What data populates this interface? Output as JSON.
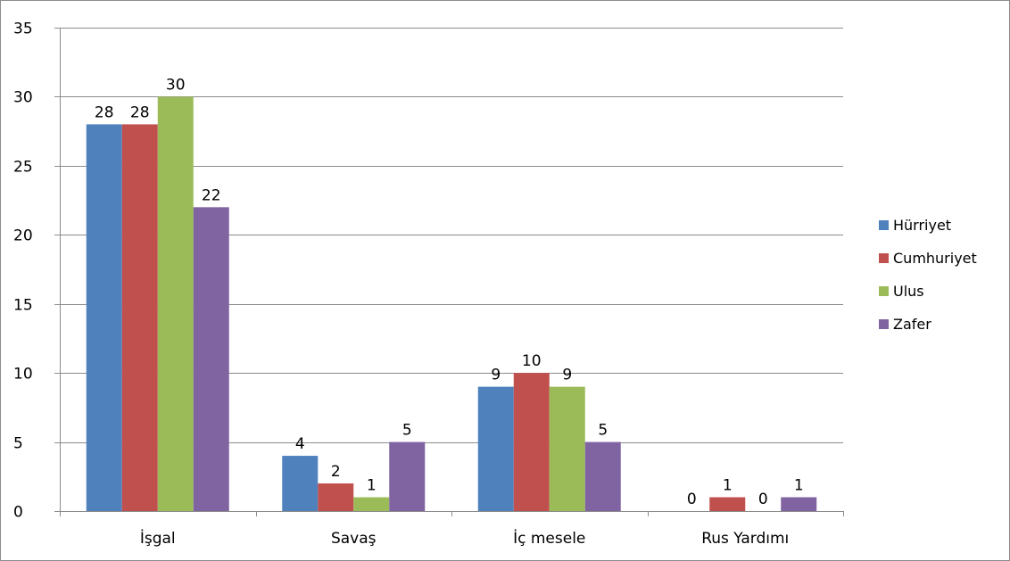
{
  "chart_data": {
    "type": "bar",
    "title": "",
    "xlabel": "",
    "ylabel": "",
    "categories": [
      "İşgal",
      "Savaş",
      "İç mesele",
      "Rus Yardımı"
    ],
    "series": [
      {
        "name": "Hürriyet",
        "color": "#4f81bd",
        "values": [
          28,
          4,
          9,
          0
        ]
      },
      {
        "name": "Cumhuriyet",
        "color": "#c0504d",
        "values": [
          28,
          2,
          10,
          1
        ]
      },
      {
        "name": "Ulus",
        "color": "#9bbb59",
        "values": [
          30,
          1,
          9,
          0
        ]
      },
      {
        "name": "Zafer",
        "color": "#8064a2",
        "values": [
          22,
          5,
          5,
          1
        ]
      }
    ],
    "ylim": [
      0,
      35
    ],
    "yticks": [
      0,
      5,
      10,
      15,
      20,
      25,
      30,
      35
    ],
    "grid": true,
    "legend": "right",
    "data_labels": true
  }
}
